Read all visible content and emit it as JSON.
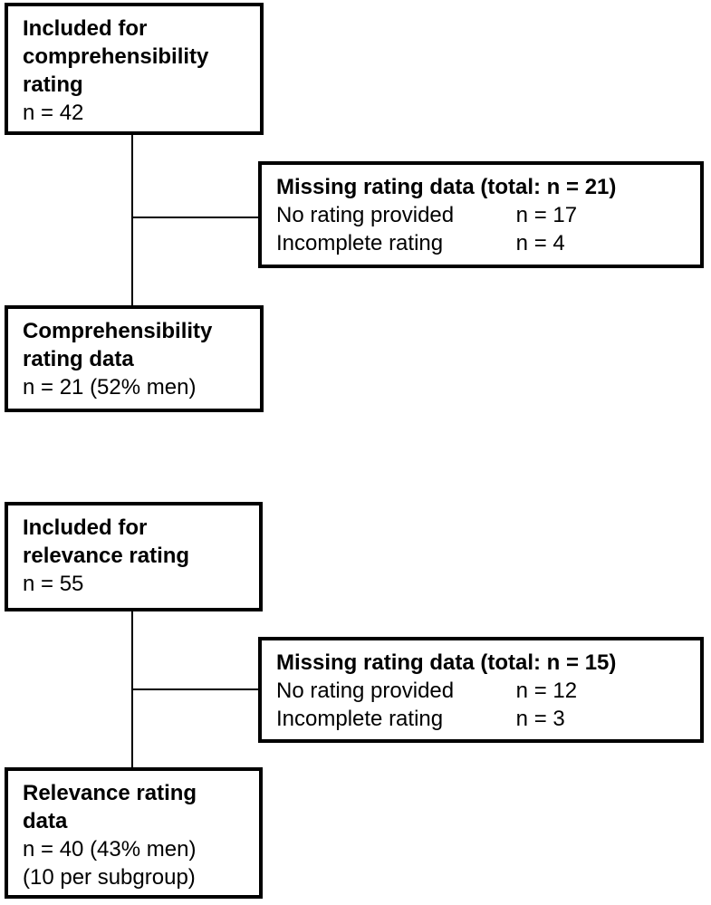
{
  "diagram": {
    "type": "flowchart",
    "colors": {
      "border": "#000000",
      "background": "#ffffff",
      "text": "#000000"
    },
    "sections": [
      {
        "included_box": {
          "title_lines": [
            "Included for",
            "comprehensibility",
            "rating"
          ],
          "n_line": "n = 42"
        },
        "missing_box": {
          "title": "Missing rating data (total: n = 21)",
          "rows": [
            {
              "label": "No rating provided",
              "value": "n = 17"
            },
            {
              "label": "Incomplete rating",
              "value": "n = 4"
            }
          ]
        },
        "result_box": {
          "title_lines": [
            "Comprehensibility",
            "rating data"
          ],
          "detail_lines": [
            "n = 21 (52% men)"
          ]
        }
      },
      {
        "included_box": {
          "title_lines": [
            "Included for",
            "relevance rating"
          ],
          "n_line": "n = 55"
        },
        "missing_box": {
          "title": "Missing rating data (total: n = 15)",
          "rows": [
            {
              "label": "No rating provided",
              "value": "n = 12"
            },
            {
              "label": "Incomplete rating",
              "value": "n = 3"
            }
          ]
        },
        "result_box": {
          "title_lines": [
            "Relevance rating",
            "data"
          ],
          "detail_lines": [
            "n = 40 (43% men)",
            "(10 per subgroup)"
          ]
        }
      }
    ]
  }
}
